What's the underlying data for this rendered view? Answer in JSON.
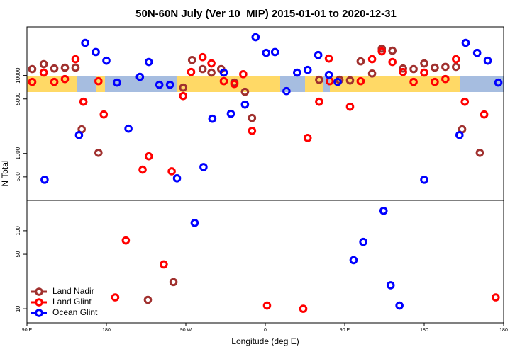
{
  "chart_data": [
    {
      "type": "scatter",
      "title": "50N-60N July (Ver 10_MIP)   2015-01-01 to 2020-12-31",
      "ylabel": "N Total",
      "log_y": true,
      "xlim": [
        90,
        630
      ],
      "ylim": [
        250,
        42000
      ],
      "yticks": [
        500,
        1000,
        5000,
        10000
      ],
      "series": [
        {
          "color": "#a0302e",
          "x": [
            96,
            109,
            121,
            133,
            145,
            152,
            171,
            267,
            277,
            289,
            299,
            310,
            325,
            337,
            345,
            421,
            444,
            456,
            468,
            481,
            492,
            504,
            516,
            528,
            540,
            552,
            564,
            576,
            583,
            603
          ],
          "values": [
            12100,
            14000,
            12300,
            12600,
            12600,
            2040,
            1020,
            7000,
            15800,
            12100,
            10900,
            12100,
            8110,
            6180,
            2850,
            8800,
            8800,
            8640,
            15200,
            10600,
            22100,
            20800,
            12300,
            12100,
            14300,
            12600,
            12900,
            12900,
            2040,
            1020
          ]
        },
        {
          "color": "#ff0000",
          "x": [
            96,
            109,
            121,
            133,
            145,
            154,
            171,
            177,
            221,
            228,
            254,
            267,
            276,
            289,
            299,
            313,
            325,
            335,
            345,
            408,
            421,
            432,
            433,
            456,
            468,
            481,
            492,
            504,
            516,
            528,
            540,
            552,
            564,
            576,
            586,
            608
          ],
          "values": [
            8280,
            10900,
            8280,
            9000,
            16200,
            4610,
            8460,
            3160,
            620,
            920,
            590,
            5450,
            11100,
            17200,
            14300,
            8460,
            7780,
            10400,
            1950,
            1580,
            4610,
            16500,
            8460,
            3980,
            8460,
            16200,
            20400,
            14900,
            11100,
            8280,
            10900,
            8280,
            9000,
            16200,
            4610,
            3160
          ]
        },
        {
          "color": "#0000ff",
          "x": [
            110,
            149,
            156,
            168,
            180,
            192,
            205,
            218,
            228,
            240,
            252,
            260,
            290,
            300,
            313,
            321,
            337,
            349,
            361,
            371,
            384,
            396,
            408,
            420,
            432,
            442,
            540,
            580,
            587,
            600,
            612,
            624
          ],
          "values": [
            460,
            1720,
            26200,
            20000,
            15500,
            8110,
            2080,
            9600,
            14900,
            7620,
            7620,
            480,
            670,
            2790,
            10900,
            3230,
            4240,
            31000,
            19500,
            20000,
            6310,
            10900,
            11800,
            18300,
            10200,
            8280,
            460,
            1720,
            26200,
            19500,
            15500,
            8110
          ]
        }
      ]
    },
    {
      "type": "scatter",
      "xlabel": "Longitude (deg E)",
      "log_y": true,
      "legend": "lower-left",
      "xlim": [
        90,
        630
      ],
      "ylim": [
        6.6,
        245
      ],
      "xticks": [
        {
          "value": 90,
          "label": "90 E"
        },
        180,
        {
          "value": 270,
          "label": "90 W"
        },
        {
          "value": 360,
          "label": "0"
        },
        {
          "value": 450,
          "label": "90 E"
        },
        {
          "value": 540,
          "label": "180"
        },
        {
          "value": 630,
          "label": "180"
        }
      ],
      "yticks": [
        10,
        50,
        100
      ],
      "series": [
        {
          "name": "Land Nadir",
          "color": "#a0302e",
          "x": [
            227,
            256
          ],
          "values": [
            13,
            22
          ]
        },
        {
          "name": "Land Glint",
          "color": "#ff0000",
          "x": [
            190,
            202,
            245,
            362,
            403,
            621
          ],
          "values": [
            14,
            75,
            37,
            11,
            10,
            14
          ]
        },
        {
          "name": "Ocean Glint",
          "color": "#0000ff",
          "x": [
            280,
            460,
            471,
            494,
            502,
            512
          ],
          "values": [
            126,
            42,
            72,
            180,
            20,
            11
          ]
        }
      ]
    }
  ]
}
